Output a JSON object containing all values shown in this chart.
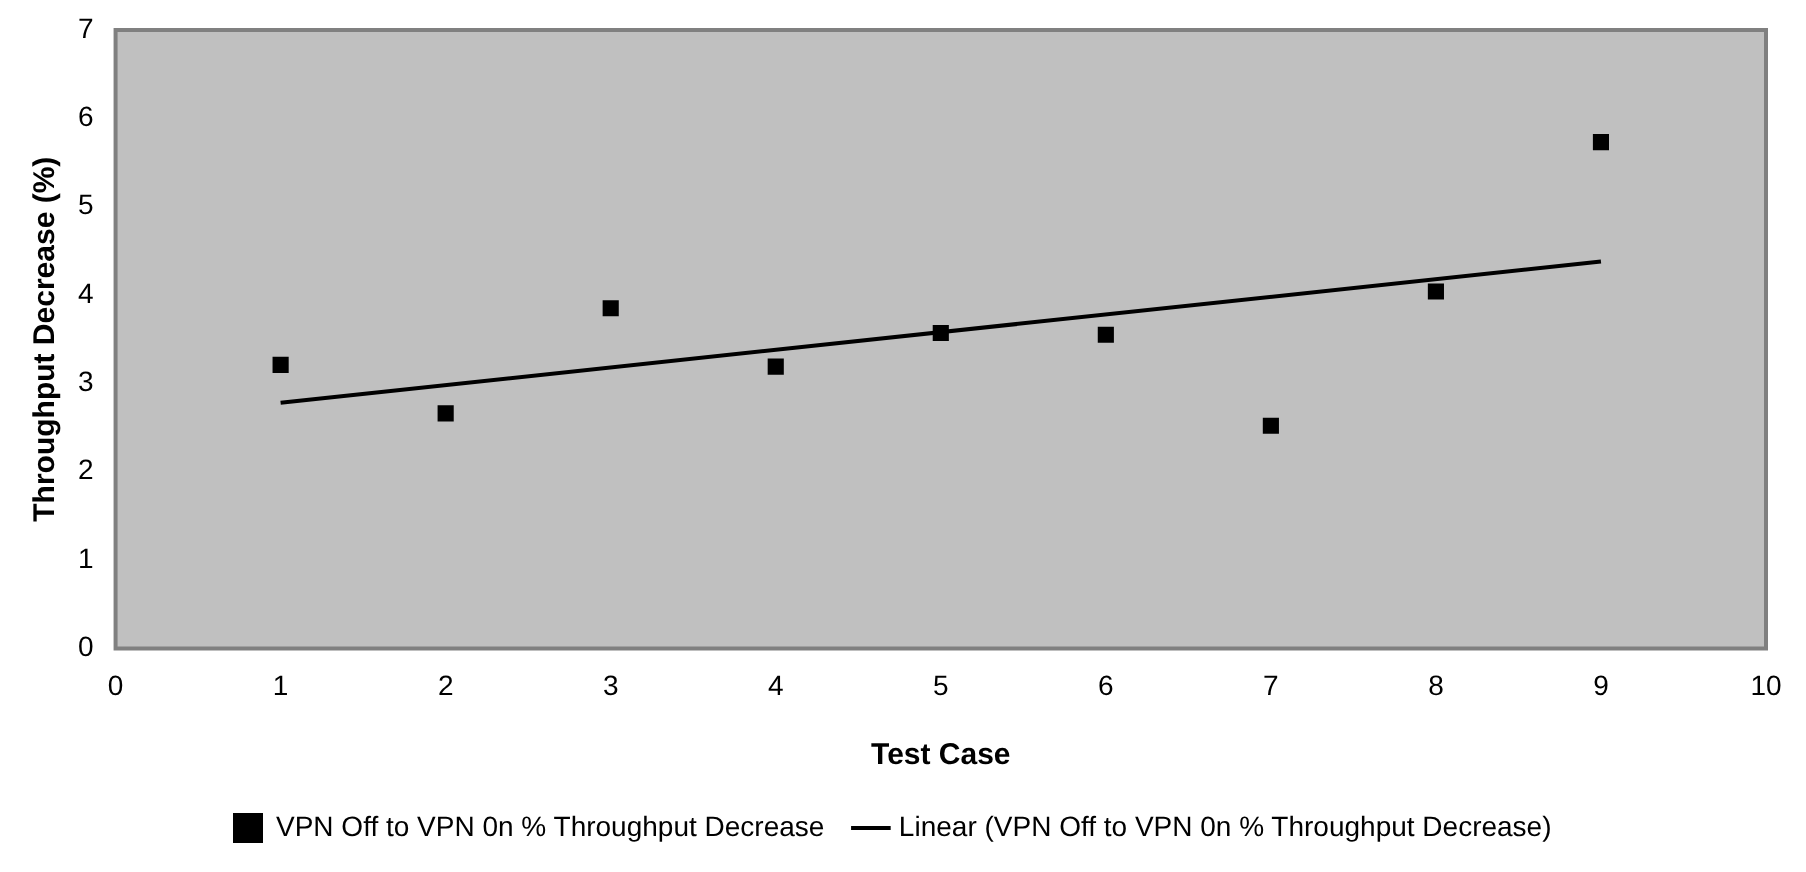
{
  "chart_data": {
    "type": "scatter",
    "xlabel": "Test Case",
    "ylabel": "Throughput Decrease (%)",
    "xlim": [
      0,
      10
    ],
    "xticks": [
      0,
      1,
      2,
      3,
      4,
      5,
      6,
      7,
      8,
      9,
      10
    ],
    "ylim": [
      0,
      7
    ],
    "yticks": [
      0,
      1,
      2,
      3,
      4,
      5,
      6,
      7
    ],
    "grid": false,
    "legend": "bottom",
    "series": [
      {
        "name": "VPN Off to VPN 0n % Throughput Decrease",
        "color": "#000000",
        "marker": "square",
        "x": [
          1,
          2,
          3,
          4,
          5,
          6,
          7,
          8,
          9
        ],
        "values": [
          3.21,
          2.66,
          3.85,
          3.19,
          3.57,
          3.55,
          2.52,
          4.04,
          5.73
        ]
      },
      {
        "name": "Linear (VPN Off to VPN 0n % Throughput Decrease)",
        "type": "line",
        "color": "#000000",
        "marker": "none",
        "line_style": "solid",
        "x": [
          1,
          9
        ],
        "values": [
          2.78,
          4.38
        ]
      }
    ]
  }
}
